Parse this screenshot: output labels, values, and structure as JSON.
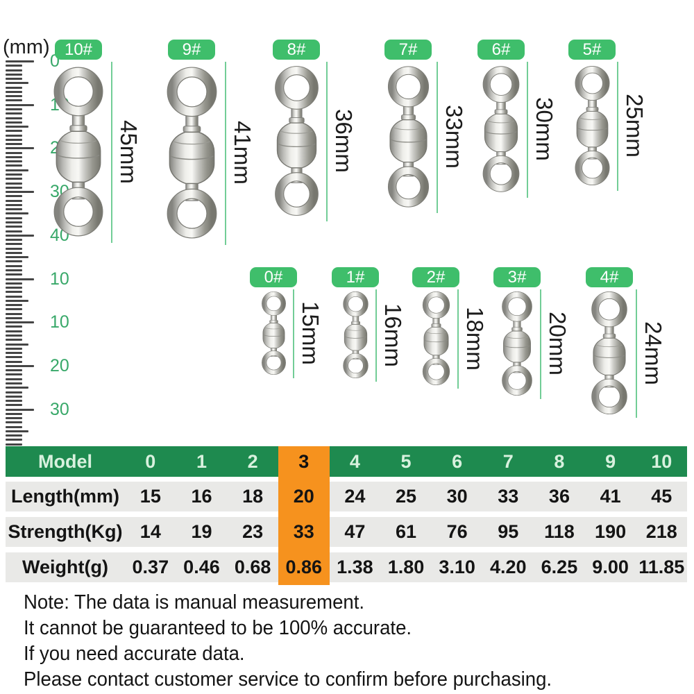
{
  "ruler": {
    "unit_label": "(mm)",
    "labels": [
      "0",
      "10",
      "20",
      "30",
      "40",
      "10",
      "10",
      "20",
      "30"
    ]
  },
  "figures": {
    "rows": [
      {
        "items": [
          {
            "tag": "10#",
            "length": "45mm"
          },
          {
            "tag": "9#",
            "length": "41mm"
          },
          {
            "tag": "8#",
            "length": "36mm"
          },
          {
            "tag": "7#",
            "length": "33mm"
          },
          {
            "tag": "6#",
            "length": "30mm"
          },
          {
            "tag": "5#",
            "length": "25mm"
          }
        ]
      },
      {
        "items": [
          {
            "tag": "0#",
            "length": "15mm"
          },
          {
            "tag": "1#",
            "length": "16mm"
          },
          {
            "tag": "2#",
            "length": "18mm"
          },
          {
            "tag": "3#",
            "length": "20mm"
          },
          {
            "tag": "4#",
            "length": "24mm"
          }
        ]
      }
    ]
  },
  "table": {
    "header": {
      "label": "Model",
      "cols": [
        "0",
        "1",
        "2",
        "3",
        "4",
        "5",
        "6",
        "7",
        "8",
        "9",
        "10"
      ],
      "highlight_col": 3
    },
    "rows": [
      {
        "label": "Length(mm)",
        "values": [
          "15",
          "16",
          "18",
          "20",
          "24",
          "25",
          "30",
          "33",
          "36",
          "41",
          "45"
        ]
      },
      {
        "label": "Strength(Kg)",
        "values": [
          "14",
          "19",
          "23",
          "33",
          "47",
          "61",
          "76",
          "95",
          "118",
          "190",
          "218"
        ]
      },
      {
        "label": "Weight(g)",
        "values": [
          "0.37",
          "0.46",
          "0.68",
          "0.86",
          "1.38",
          "1.80",
          "3.10",
          "4.20",
          "6.25",
          "9.00",
          "11.85"
        ]
      }
    ]
  },
  "note": {
    "lines": [
      "Note: The data is manual measurement.",
      "It cannot be guaranteed to be 100% accurate.",
      "If you need accurate data.",
      "Please contact customer service to confirm before purchasing."
    ]
  },
  "colors": {
    "badge_green": "#3fbe6b",
    "table_header_green": "#1e8a4f",
    "header_text_green": "#d8f1de",
    "highlight_orange": "#f6921e",
    "row_gray": "#e9e9e7",
    "ruler_number_green": "#38a869",
    "measure_line_green": "#72cd96",
    "metal_gray": "#b9b9b5"
  }
}
